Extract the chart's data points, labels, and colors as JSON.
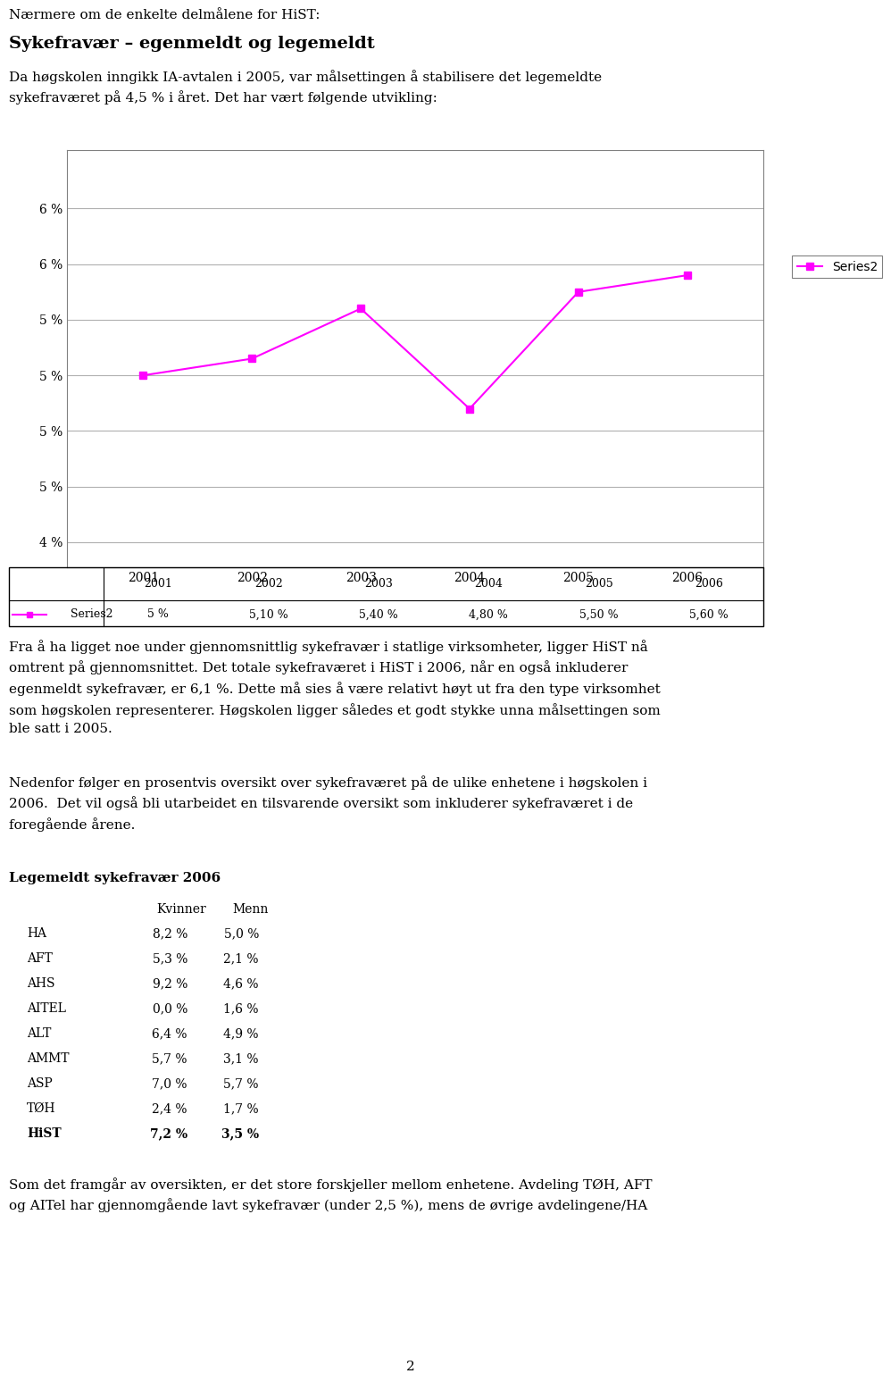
{
  "page_title": "Nærmere om de enkelte delmålene for HiST:",
  "section_title": "Sykefravær – egenmeldt og legemeldt",
  "section_body1": "Da høgskolen inngikk IA-avtalen i 2005, var målsettingen å stabilisere det legemeldte\nsykefraværet på 4,5 % i året. Det har vært følgende utvikling:",
  "chart": {
    "years": [
      2001,
      2002,
      2003,
      2004,
      2005,
      2006
    ],
    "values": [
      5.0,
      5.1,
      5.4,
      4.8,
      5.5,
      5.6
    ],
    "tick_positions": [
      4.0,
      4.333,
      4.667,
      5.0,
      5.333,
      5.667,
      6.0
    ],
    "tick_labels": [
      "4 %",
      "5 %",
      "5 %",
      "5 %",
      "5 %",
      "6 %",
      "6 %"
    ],
    "ylim": [
      3.85,
      6.35
    ],
    "xlim": [
      2000.3,
      2006.7
    ],
    "line_color": "#FF00FF",
    "marker": "s",
    "series_label": "Series2"
  },
  "data_table": {
    "row_label": "Series2",
    "columns": [
      "2001",
      "2002",
      "2003",
      "2004",
      "2005",
      "2006"
    ],
    "values": [
      "5 %",
      "5,10 %",
      "5,40 %",
      "4,80 %",
      "5,50 %",
      "5,60 %"
    ],
    "line_color": "#FF00FF"
  },
  "body2": "Fra å ha ligget noe under gjennomsnittlig sykefravær i statlige virksomheter, ligger HiST nå\nomtrent på gjennomsnittet. Det totale sykefraværet i HiST i 2006, når en også inkluderer\negenmeldt sykefravær, er 6,1 %. Dette må sies å være relativt høyt ut fra den type virksomhet\nsom høgskolen representerer. Høgskolen ligger således et godt stykke unna målsettingen som\nble satt i 2005.",
  "body3": "Nedenfor følger en prosentvis oversikt over sykefraværet på de ulike enhetene i høgskolen i\n2006.  Det vil også bli utarbeidet en tilsvarende oversikt som inkluderer sykefraværet i de\nforegående årene.",
  "table_title": "Legemeldt sykefravær 2006",
  "table_headers": [
    "",
    "Kvinner",
    "Menn"
  ],
  "table_rows": [
    [
      "HA",
      "8,2 %",
      "5,0 %"
    ],
    [
      "AFT",
      "5,3 %",
      "2,1 %"
    ],
    [
      "AHS",
      "9,2 %",
      "4,6 %"
    ],
    [
      "AITEL",
      "0,0 %",
      "1,6 %"
    ],
    [
      "ALT",
      "6,4 %",
      "4,9 %"
    ],
    [
      "AMMT",
      "5,7 %",
      "3,1 %"
    ],
    [
      "ASP",
      "7,0 %",
      "5,7 %"
    ],
    [
      "TØH",
      "2,4 %",
      "1,7 %"
    ],
    [
      "HiST",
      "7,2 %",
      "3,5 %"
    ]
  ],
  "footer_text": "Som det framgår av oversikten, er det store forskjeller mellom enhetene. Avdeling TØH, AFT\nog AITel har gjennomgående lavt sykefravær (under 2,5 %), mens de øvrige avdelingene/HA",
  "page_number": "2",
  "background_color": "#ffffff",
  "text_color": "#000000"
}
